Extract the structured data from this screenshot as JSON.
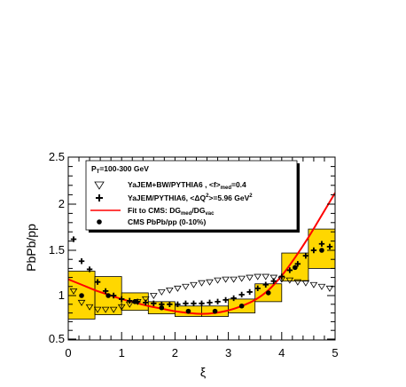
{
  "chart_data": {
    "type": "scatter",
    "xlabel": "ξ",
    "ylabel": "PbPb/pp",
    "xlim": [
      0,
      5
    ],
    "ylim": [
      0.45,
      2.5
    ],
    "x_ticks": [
      "0",
      "1",
      "2",
      "3",
      "4",
      "5"
    ],
    "y_ticks": [
      "0.5",
      "1",
      "1.5",
      "2",
      "2.5"
    ],
    "legend_placement": "top-left",
    "legend": {
      "header": "P<sub>T</sub>=100-300 GeV",
      "entries": [
        {
          "marker": "open-triangle-down",
          "label": "YaJEM+BW/PYTHIA6 , <f>med=0.4"
        },
        {
          "marker": "cross",
          "label": "YaJEM/PYTHIA6, <ΔQ²>=5.96 GeV²"
        },
        {
          "marker": "red-line",
          "label": "Fit to CMS: DGmed/DGvac"
        },
        {
          "marker": "filled-circle",
          "label": "CMS PbPb/pp (0-10%)"
        }
      ]
    },
    "colors": {
      "band": "#ffd700",
      "band_edge": "#000000",
      "fit": "#ff0000",
      "markers": "#000000"
    },
    "cms_data": {
      "points": [
        {
          "x": 0.25,
          "y": 1.0
        },
        {
          "x": 0.75,
          "y": 1.0
        },
        {
          "x": 1.25,
          "y": 0.93
        },
        {
          "x": 1.75,
          "y": 0.86
        },
        {
          "x": 2.25,
          "y": 0.82
        },
        {
          "x": 2.75,
          "y": 0.82
        },
        {
          "x": 3.25,
          "y": 0.88
        },
        {
          "x": 3.75,
          "y": 1.03
        },
        {
          "x": 4.25,
          "y": 1.31
        },
        {
          "x": 4.75,
          "y": 1.5
        }
      ],
      "systematic_bands": [
        {
          "x0": 0.0,
          "x1": 0.5,
          "low": 0.73,
          "high": 1.27
        },
        {
          "x0": 0.5,
          "x1": 1.0,
          "low": 0.78,
          "high": 1.21
        },
        {
          "x0": 1.0,
          "x1": 1.5,
          "low": 0.83,
          "high": 1.03
        },
        {
          "x0": 1.5,
          "x1": 2.0,
          "low": 0.79,
          "high": 0.93
        },
        {
          "x0": 2.0,
          "x1": 2.5,
          "low": 0.76,
          "high": 0.88
        },
        {
          "x0": 2.5,
          "x1": 3.0,
          "low": 0.76,
          "high": 0.88
        },
        {
          "x0": 3.0,
          "x1": 3.5,
          "low": 0.8,
          "high": 0.96
        },
        {
          "x0": 3.5,
          "x1": 4.0,
          "low": 0.93,
          "high": 1.13
        },
        {
          "x0": 4.0,
          "x1": 4.5,
          "low": 1.16,
          "high": 1.47
        },
        {
          "x0": 4.5,
          "x1": 5.0,
          "low": 1.3,
          "high": 1.73
        }
      ]
    },
    "yajem_bw": {
      "x": [
        0.1,
        0.25,
        0.4,
        0.55,
        0.7,
        0.85,
        1.0,
        1.15,
        1.3,
        1.45,
        1.6,
        1.75,
        1.9,
        2.05,
        2.2,
        2.35,
        2.5,
        2.65,
        2.8,
        2.95,
        3.1,
        3.25,
        3.4,
        3.55,
        3.7,
        3.85,
        4.0,
        4.15,
        4.3,
        4.45,
        4.6,
        4.75,
        4.9
      ],
      "y": [
        1.05,
        0.92,
        0.87,
        0.84,
        0.84,
        0.84,
        0.87,
        0.9,
        0.93,
        0.96,
        1.0,
        1.04,
        1.06,
        1.08,
        1.1,
        1.12,
        1.14,
        1.15,
        1.17,
        1.18,
        1.18,
        1.19,
        1.2,
        1.21,
        1.21,
        1.2,
        1.18,
        1.17,
        1.15,
        1.14,
        1.12,
        1.1,
        1.08
      ]
    },
    "yajem_pythia": {
      "x": [
        0.1,
        0.25,
        0.4,
        0.55,
        0.7,
        0.85,
        1.0,
        1.15,
        1.3,
        1.45,
        1.6,
        1.75,
        1.9,
        2.05,
        2.2,
        2.35,
        2.5,
        2.65,
        2.8,
        2.95,
        3.1,
        3.25,
        3.4,
        3.55,
        3.7,
        3.85,
        4.0,
        4.15,
        4.3,
        4.45,
        4.6,
        4.75,
        4.9
      ],
      "y": [
        1.62,
        1.38,
        1.29,
        1.15,
        1.05,
        1.0,
        0.96,
        0.94,
        0.93,
        0.92,
        0.91,
        0.9,
        0.9,
        0.9,
        0.91,
        0.91,
        0.91,
        0.92,
        0.93,
        0.95,
        0.97,
        1.01,
        1.04,
        1.08,
        1.12,
        1.16,
        1.21,
        1.28,
        1.35,
        1.44,
        1.5,
        1.57,
        1.54
      ]
    },
    "fit_curve": {
      "x": [
        0.0,
        0.25,
        0.5,
        0.75,
        1.0,
        1.25,
        1.5,
        1.75,
        2.0,
        2.25,
        2.5,
        2.75,
        3.0,
        3.25,
        3.5,
        3.75,
        4.0,
        4.25,
        4.5,
        4.75,
        5.0
      ],
      "y": [
        1.18,
        1.12,
        1.06,
        1.01,
        0.96,
        0.92,
        0.88,
        0.85,
        0.82,
        0.8,
        0.79,
        0.8,
        0.83,
        0.88,
        0.95,
        1.06,
        1.22,
        1.42,
        1.64,
        1.88,
        2.12
      ]
    }
  }
}
